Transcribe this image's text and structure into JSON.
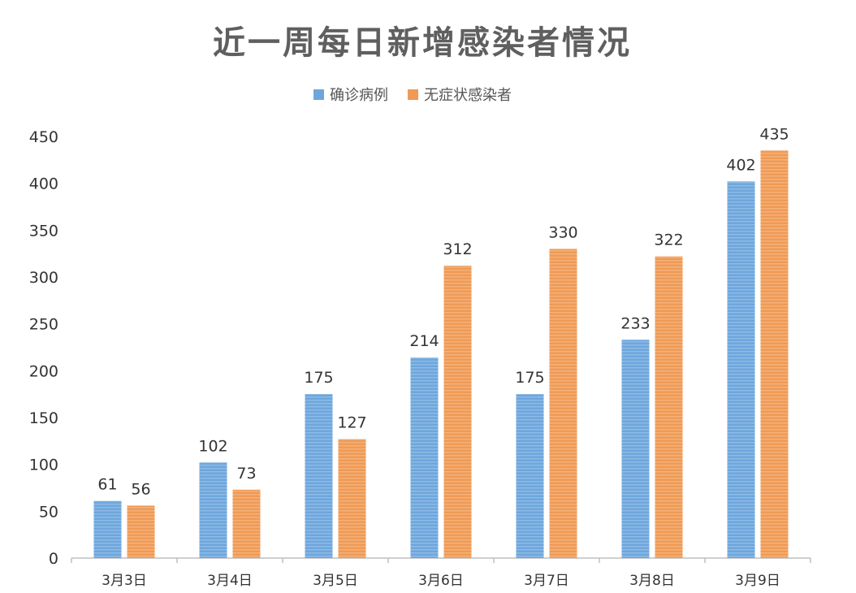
{
  "chart_data": {
    "type": "bar",
    "title": "近一周每日新增感染者情况",
    "categories": [
      "3月3日",
      "3月4日",
      "3月5日",
      "3月6日",
      "3月7日",
      "3月8日",
      "3月9日"
    ],
    "series": [
      {
        "name": "确诊病例",
        "values": [
          61,
          102,
          175,
          214,
          175,
          233,
          402
        ],
        "color": "#6ea6dc"
      },
      {
        "name": "无症状感染者",
        "values": [
          56,
          73,
          127,
          312,
          330,
          322,
          435
        ],
        "color": "#ef9a55"
      }
    ],
    "ylim": [
      0,
      450
    ],
    "yticks": [
      0,
      50,
      100,
      150,
      200,
      250,
      300,
      350,
      400,
      450
    ],
    "grid": false,
    "legend": "top-center",
    "data_labels": true
  }
}
